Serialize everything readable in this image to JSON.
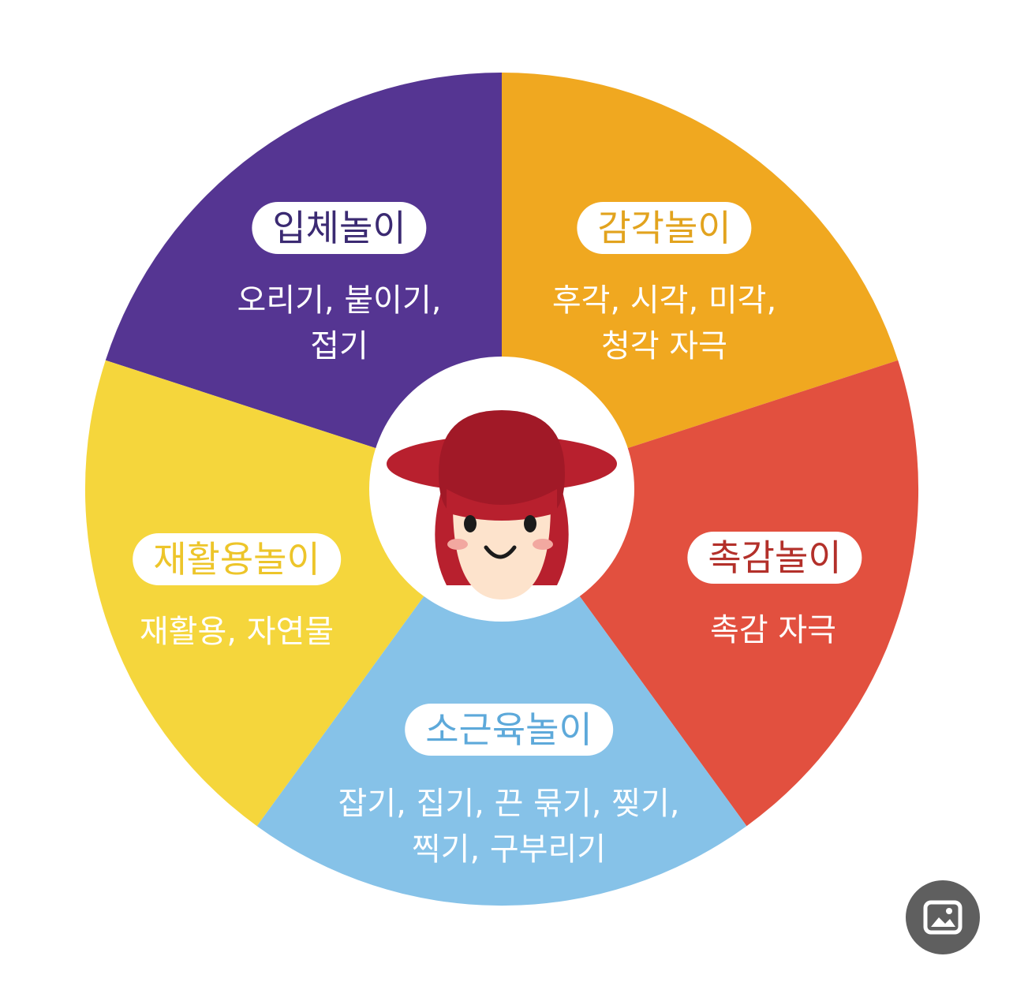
{
  "sectors": [
    {
      "title": "입체놀이",
      "lines": [
        "오리기, 붙이기,",
        "접기"
      ],
      "color": "#553592",
      "title_color": "#3b2a72"
    },
    {
      "title": "감각놀이",
      "lines": [
        "후각, 시각, 미각,",
        "청각 자극"
      ],
      "color": "#f0a820",
      "title_color": "#e2a31e"
    },
    {
      "title": "촉감놀이",
      "lines": [
        "촉감 자극"
      ],
      "color": "#e2503f",
      "title_color": "#b3302a"
    },
    {
      "title": "소근육놀이",
      "lines": [
        "잡기, 집기, 끈 묶기, 찢기,",
        "찍기, 구부리기"
      ],
      "color": "#86c2e8",
      "title_color": "#5da9da"
    },
    {
      "title": "재활용놀이",
      "lines": [
        "재활용, 자연물"
      ],
      "color": "#f5d63c",
      "title_color": "#edc52a"
    }
  ],
  "center": {
    "icon": "girl-character-icon",
    "hat_color": "#b8202e",
    "face_color": "#fde3cc"
  },
  "image_button": {
    "icon": "image-icon"
  }
}
